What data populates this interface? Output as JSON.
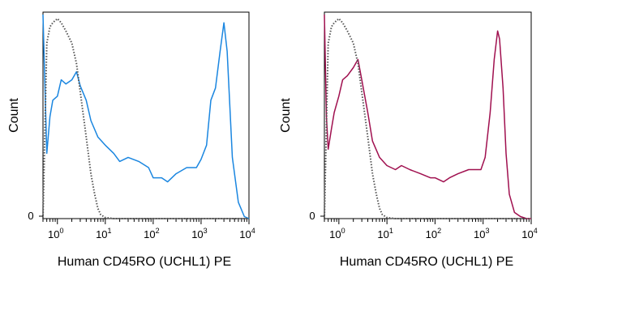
{
  "chart_data": [
    {
      "type": "line",
      "panel": "left",
      "xlabel": "Human CD45RO (UCHL1) PE",
      "ylabel": "Count",
      "x_scale": "log",
      "xlim": [
        0.5,
        10000
      ],
      "ylim": [
        0,
        100
      ],
      "x_tick_labels": [
        {
          "base": "10",
          "exp": "0"
        },
        {
          "base": "10",
          "exp": "1"
        },
        {
          "base": "10",
          "exp": "2"
        },
        {
          "base": "10",
          "exp": "3"
        },
        {
          "base": "10",
          "exp": "4"
        }
      ],
      "y_tick_labels": [
        "0"
      ],
      "grid": false,
      "series": [
        {
          "style": "solid",
          "color": "#1a86e0",
          "x": [
            0.5,
            0.6,
            0.7,
            0.8,
            1.0,
            1.2,
            1.5,
            2.0,
            2.5,
            3.0,
            4.0,
            5.0,
            7.0,
            10,
            15,
            20,
            30,
            50,
            80,
            100,
            150,
            200,
            300,
            500,
            800,
            1000,
            1300,
            1600,
            2000,
            2500,
            3000,
            3500,
            4500,
            6000,
            8000,
            10000
          ],
          "values": [
            100,
            32,
            50,
            58,
            60,
            68,
            66,
            68,
            72,
            65,
            58,
            48,
            40,
            36,
            32,
            28,
            30,
            28,
            25,
            20,
            20,
            18,
            22,
            25,
            25,
            29,
            36,
            58,
            64,
            82,
            96,
            82,
            30,
            8,
            1,
            0
          ]
        },
        {
          "style": "dotted",
          "color": "#555555",
          "x": [
            0.5,
            0.6,
            0.7,
            0.8,
            1.0,
            1.2,
            1.5,
            2.0,
            2.5,
            3.0,
            4.0,
            5.0,
            6.0,
            7.0,
            8.0,
            10,
            15,
            20,
            30,
            50,
            100,
            1000,
            10000
          ],
          "values": [
            0,
            86,
            94,
            96,
            98,
            96,
            92,
            86,
            76,
            62,
            40,
            22,
            12,
            5,
            2,
            0.5,
            0,
            0,
            0,
            0,
            0,
            0,
            0
          ]
        }
      ]
    },
    {
      "type": "line",
      "panel": "right",
      "xlabel": "Human CD45RO (UCHL1) PE",
      "ylabel": "Count",
      "x_scale": "log",
      "xlim": [
        0.5,
        10000
      ],
      "ylim": [
        0,
        100
      ],
      "x_tick_labels": [
        {
          "base": "10",
          "exp": "0"
        },
        {
          "base": "10",
          "exp": "1"
        },
        {
          "base": "10",
          "exp": "2"
        },
        {
          "base": "10",
          "exp": "3"
        },
        {
          "base": "10",
          "exp": "4"
        }
      ],
      "y_tick_labels": [
        "0"
      ],
      "grid": false,
      "series": [
        {
          "style": "solid",
          "color": "#a0104f",
          "x": [
            0.5,
            0.55,
            0.6,
            0.7,
            0.8,
            1.0,
            1.2,
            1.5,
            2.0,
            2.5,
            3.0,
            4.0,
            5.0,
            7.0,
            10,
            15,
            20,
            30,
            50,
            80,
            100,
            150,
            200,
            300,
            500,
            700,
            900,
            1100,
            1400,
            1700,
            2000,
            2200,
            2600,
            3000,
            3500,
            4500,
            6000,
            8000,
            10000
          ],
          "values": [
            100,
            50,
            34,
            44,
            52,
            60,
            68,
            70,
            74,
            78,
            68,
            52,
            38,
            30,
            26,
            24,
            26,
            24,
            22,
            20,
            20,
            18,
            20,
            22,
            24,
            24,
            24,
            30,
            52,
            78,
            92,
            88,
            64,
            32,
            12,
            3,
            1,
            0,
            0
          ]
        },
        {
          "style": "dotted",
          "color": "#555555",
          "x": [
            0.5,
            0.6,
            0.7,
            0.8,
            1.0,
            1.2,
            1.5,
            2.0,
            2.5,
            3.0,
            4.0,
            5.0,
            6.0,
            7.0,
            8.0,
            10,
            15,
            20,
            30,
            50,
            100,
            1000,
            10000
          ],
          "values": [
            0,
            86,
            94,
            96,
            98,
            96,
            92,
            86,
            76,
            62,
            40,
            22,
            12,
            5,
            2,
            0.5,
            0,
            0,
            0,
            0,
            0,
            0,
            0
          ]
        }
      ]
    }
  ]
}
